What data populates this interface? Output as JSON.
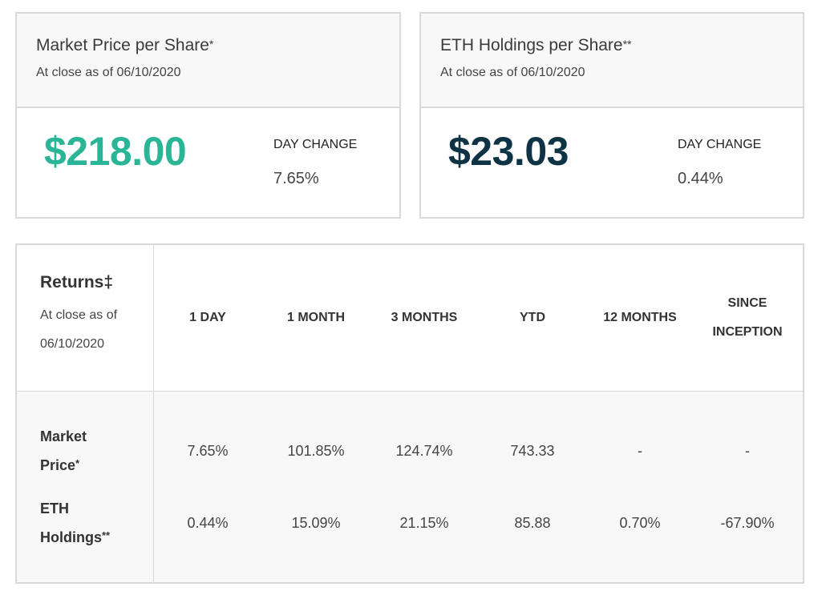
{
  "market_card": {
    "title": "Market Price per Share",
    "title_mark": "*",
    "subtitle": "At close as of 06/10/2020",
    "price": "$218.00",
    "day_change_label": "DAY CHANGE",
    "day_change_value": "7.65%",
    "price_color": "#2bb597"
  },
  "eth_card": {
    "title": "ETH Holdings per Share",
    "title_mark": "**",
    "subtitle": "At close as of 06/10/2020",
    "price": "$23.03",
    "day_change_label": "DAY CHANGE",
    "day_change_value": "0.44%",
    "price_color": "#0d3344"
  },
  "returns": {
    "title": "Returns‡",
    "subtitle": "At close as of 06/10/2020",
    "columns": [
      "1 DAY",
      "1 MONTH",
      "3 MONTHS",
      "YTD",
      "12 MONTHS",
      "SINCE INCEPTION"
    ],
    "rows": [
      {
        "label": "Market Price",
        "label_mark": "*",
        "values": [
          "7.65%",
          "101.85%",
          "124.74%",
          "743.33",
          "-",
          "-"
        ]
      },
      {
        "label": "ETH Holdings",
        "label_mark": "**",
        "values": [
          "0.44%",
          "15.09%",
          "21.15%",
          "85.88",
          "0.70%",
          "-67.90%"
        ]
      }
    ]
  },
  "colors": {
    "border": "#d9d9d9",
    "header_bg": "#f8f8f8"
  }
}
